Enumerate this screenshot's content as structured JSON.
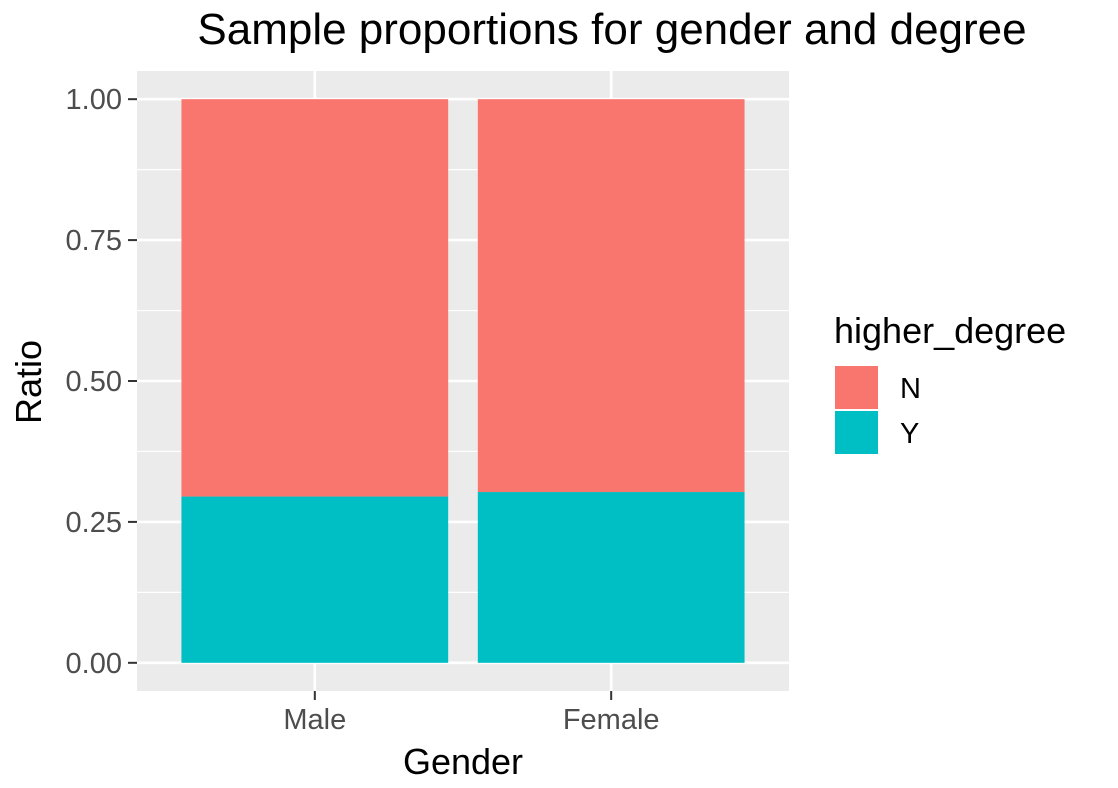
{
  "chart_data": {
    "type": "bar",
    "stacked": true,
    "title": "Sample proportions for gender and degree",
    "xlabel": "Gender",
    "ylabel": "Ratio",
    "categories": [
      "Male",
      "Female"
    ],
    "series": [
      {
        "name": "N",
        "color": "#F8766D",
        "values": [
          0.705,
          0.697
        ]
      },
      {
        "name": "Y",
        "color": "#00BFC4",
        "values": [
          0.295,
          0.303
        ]
      }
    ],
    "ylim": [
      -0.05,
      1.05
    ],
    "yticks": [
      0.0,
      0.25,
      0.5,
      0.75,
      1.0
    ],
    "ytick_labels": [
      "0.00",
      "0.25",
      "0.50",
      "0.75",
      "1.00"
    ],
    "legend": {
      "title": "higher_degree",
      "placement": "right"
    },
    "panel_background": "#EBEBEB",
    "grid": true
  }
}
